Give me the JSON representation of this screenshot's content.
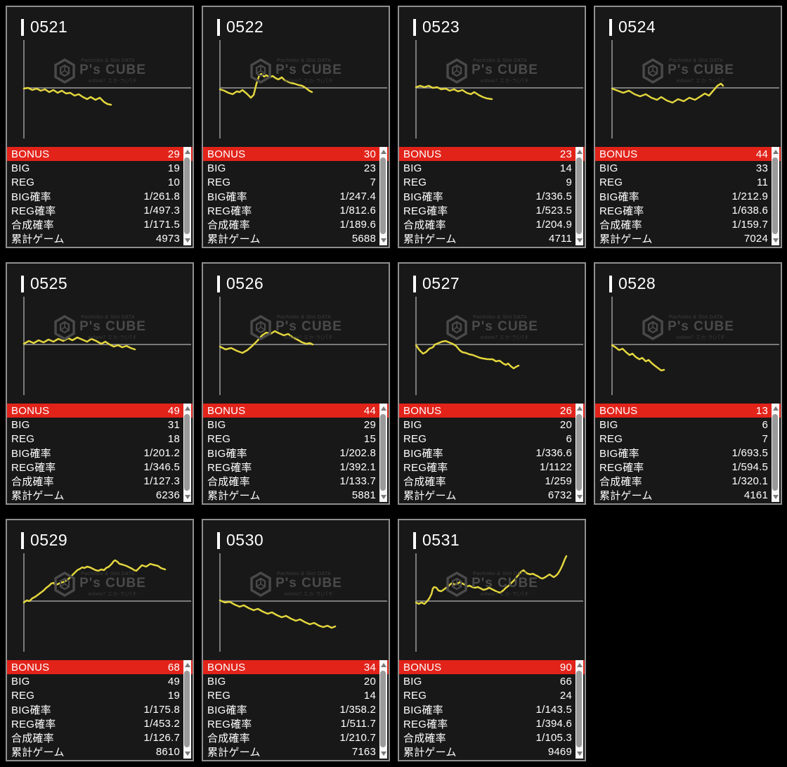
{
  "watermark": {
    "top_text": "Pachinko & Slot DATA",
    "brand": "P's CUBE",
    "sub_text": "wdww7 エカ-ラ(パチ"
  },
  "table": {
    "labels": [
      "BONUS",
      "BIG",
      "REG",
      "BIG確率",
      "REG確率",
      "合成確率",
      "累計ゲーム"
    ]
  },
  "colors": {
    "bonus_red": "#e2231a",
    "line_yellow": "#e3d63e",
    "axis_gray": "#9a9a9a",
    "panel_border": "#8f8f8f"
  },
  "chart_data": {
    "type": "line",
    "note": "differential payout graphs per machine; line arrays are panel-local x,y coords, baseline y=68"
  },
  "panels": [
    {
      "id": "0521",
      "values": [
        "29",
        "19",
        "10",
        "1/261.8",
        "1/497.3",
        "1/171.5",
        "4973"
      ],
      "line": [
        [
          24,
          69
        ],
        [
          30,
          68
        ],
        [
          36,
          71
        ],
        [
          42,
          69
        ],
        [
          48,
          72
        ],
        [
          54,
          70
        ],
        [
          60,
          74
        ],
        [
          66,
          71
        ],
        [
          72,
          75
        ],
        [
          78,
          72
        ],
        [
          84,
          76
        ],
        [
          90,
          75
        ],
        [
          96,
          79
        ],
        [
          102,
          77
        ],
        [
          108,
          81
        ],
        [
          114,
          84
        ],
        [
          119,
          81
        ],
        [
          126,
          85
        ],
        [
          132,
          82
        ],
        [
          138,
          88
        ],
        [
          143,
          91
        ],
        [
          148,
          92
        ]
      ]
    },
    {
      "id": "0522",
      "values": [
        "30",
        "23",
        "7",
        "1/247.4",
        "1/812.6",
        "1/189.6",
        "5688"
      ],
      "line": [
        [
          24,
          70
        ],
        [
          30,
          72
        ],
        [
          36,
          75
        ],
        [
          42,
          77
        ],
        [
          48,
          73
        ],
        [
          52,
          74
        ],
        [
          56,
          71
        ],
        [
          62,
          76
        ],
        [
          68,
          82
        ],
        [
          72,
          78
        ],
        [
          76,
          62
        ],
        [
          80,
          50
        ],
        [
          83,
          48
        ],
        [
          87,
          52
        ],
        [
          90,
          50
        ],
        [
          95,
          53
        ],
        [
          99,
          51
        ],
        [
          103,
          54
        ],
        [
          107,
          56
        ],
        [
          112,
          53
        ],
        [
          116,
          57
        ],
        [
          120,
          59
        ],
        [
          125,
          61
        ],
        [
          130,
          62
        ],
        [
          136,
          64
        ],
        [
          141,
          65
        ],
        [
          146,
          68
        ],
        [
          151,
          72
        ],
        [
          155,
          74
        ]
      ]
    },
    {
      "id": "0523",
      "values": [
        "23",
        "14",
        "9",
        "1/336.5",
        "1/523.5",
        "1/204.9",
        "4711"
      ],
      "line": [
        [
          24,
          67
        ],
        [
          30,
          65
        ],
        [
          36,
          67
        ],
        [
          42,
          65
        ],
        [
          48,
          68
        ],
        [
          54,
          67
        ],
        [
          60,
          70
        ],
        [
          66,
          69
        ],
        [
          72,
          72
        ],
        [
          78,
          70
        ],
        [
          84,
          73
        ],
        [
          90,
          71
        ],
        [
          96,
          75
        ],
        [
          102,
          77
        ],
        [
          107,
          74
        ],
        [
          113,
          78
        ],
        [
          119,
          81
        ],
        [
          125,
          83
        ],
        [
          132,
          84
        ]
      ]
    },
    {
      "id": "0524",
      "values": [
        "44",
        "33",
        "11",
        "1/212.9",
        "1/638.6",
        "1/159.7",
        "7024"
      ],
      "line": [
        [
          24,
          69
        ],
        [
          32,
          72
        ],
        [
          40,
          75
        ],
        [
          48,
          72
        ],
        [
          56,
          77
        ],
        [
          64,
          80
        ],
        [
          72,
          77
        ],
        [
          80,
          82
        ],
        [
          88,
          85
        ],
        [
          94,
          81
        ],
        [
          102,
          86
        ],
        [
          110,
          89
        ],
        [
          118,
          84
        ],
        [
          126,
          87
        ],
        [
          134,
          82
        ],
        [
          142,
          85
        ],
        [
          150,
          80
        ],
        [
          156,
          76
        ],
        [
          162,
          79
        ],
        [
          168,
          72
        ],
        [
          174,
          65
        ],
        [
          179,
          62
        ],
        [
          182,
          65
        ]
      ]
    },
    {
      "id": "0525",
      "values": [
        "49",
        "31",
        "18",
        "1/201.2",
        "1/346.5",
        "1/127.3",
        "6236"
      ],
      "line": [
        [
          24,
          67
        ],
        [
          31,
          63
        ],
        [
          38,
          66
        ],
        [
          45,
          62
        ],
        [
          52,
          65
        ],
        [
          59,
          61
        ],
        [
          66,
          64
        ],
        [
          73,
          60
        ],
        [
          80,
          63
        ],
        [
          87,
          59
        ],
        [
          93,
          62
        ],
        [
          100,
          58
        ],
        [
          107,
          61
        ],
        [
          114,
          64
        ],
        [
          120,
          60
        ],
        [
          127,
          63
        ],
        [
          134,
          67
        ],
        [
          140,
          64
        ],
        [
          146,
          68
        ],
        [
          152,
          71
        ],
        [
          158,
          69
        ],
        [
          164,
          72
        ],
        [
          170,
          70
        ],
        [
          176,
          73
        ],
        [
          182,
          75
        ]
      ]
    },
    {
      "id": "0526",
      "values": [
        "44",
        "29",
        "15",
        "1/202.8",
        "1/392.1",
        "1/133.7",
        "5881"
      ],
      "line": [
        [
          24,
          71
        ],
        [
          32,
          75
        ],
        [
          40,
          73
        ],
        [
          48,
          77
        ],
        [
          56,
          80
        ],
        [
          63,
          76
        ],
        [
          70,
          70
        ],
        [
          77,
          63
        ],
        [
          84,
          55
        ],
        [
          90,
          51
        ],
        [
          96,
          53
        ],
        [
          102,
          49
        ],
        [
          108,
          52
        ],
        [
          115,
          55
        ],
        [
          121,
          53
        ],
        [
          128,
          58
        ],
        [
          134,
          61
        ],
        [
          141,
          65
        ],
        [
          147,
          67
        ],
        [
          152,
          66
        ],
        [
          156,
          68
        ]
      ]
    },
    {
      "id": "0527",
      "values": [
        "26",
        "20",
        "6",
        "1/336.6",
        "1/1122",
        "1/259",
        "6732"
      ],
      "line": [
        [
          24,
          69
        ],
        [
          29,
          76
        ],
        [
          34,
          81
        ],
        [
          38,
          79
        ],
        [
          43,
          74
        ],
        [
          48,
          72
        ],
        [
          51,
          68
        ],
        [
          56,
          66
        ],
        [
          61,
          64
        ],
        [
          66,
          63
        ],
        [
          71,
          65
        ],
        [
          76,
          67
        ],
        [
          81,
          70
        ],
        [
          86,
          76
        ],
        [
          90,
          79
        ],
        [
          95,
          80
        ],
        [
          100,
          82
        ],
        [
          105,
          83
        ],
        [
          110,
          85
        ],
        [
          115,
          87
        ],
        [
          120,
          88
        ],
        [
          126,
          89
        ],
        [
          133,
          89
        ],
        [
          138,
          92
        ],
        [
          143,
          91
        ],
        [
          148,
          95
        ],
        [
          152,
          97
        ],
        [
          155,
          95
        ],
        [
          159,
          99
        ],
        [
          163,
          102
        ],
        [
          166,
          100
        ],
        [
          170,
          98
        ]
      ]
    },
    {
      "id": "0528",
      "values": [
        "13",
        "6",
        "7",
        "1/693.5",
        "1/594.5",
        "1/320.1",
        "4161"
      ],
      "line": [
        [
          24,
          69
        ],
        [
          29,
          72
        ],
        [
          34,
          76
        ],
        [
          39,
          74
        ],
        [
          44,
          79
        ],
        [
          49,
          83
        ],
        [
          53,
          81
        ],
        [
          58,
          86
        ],
        [
          63,
          89
        ],
        [
          67,
          87
        ],
        [
          72,
          92
        ],
        [
          76,
          90
        ],
        [
          81,
          95
        ],
        [
          86,
          99
        ],
        [
          90,
          102
        ],
        [
          94,
          105
        ],
        [
          98,
          104
        ]
      ]
    },
    {
      "id": "0529",
      "values": [
        "68",
        "49",
        "19",
        "1/175.8",
        "1/453.2",
        "1/126.7",
        "8610"
      ],
      "line": [
        [
          24,
          70
        ],
        [
          28,
          67
        ],
        [
          32,
          68
        ],
        [
          36,
          64
        ],
        [
          40,
          62
        ],
        [
          44,
          59
        ],
        [
          48,
          56
        ],
        [
          52,
          53
        ],
        [
          56,
          49
        ],
        [
          60,
          46
        ],
        [
          63,
          43
        ],
        [
          66,
          42
        ],
        [
          69,
          45
        ],
        [
          72,
          44
        ],
        [
          76,
          42
        ],
        [
          80,
          41
        ],
        [
          84,
          39
        ],
        [
          88,
          36
        ],
        [
          92,
          32
        ],
        [
          96,
          28
        ],
        [
          100,
          24
        ],
        [
          104,
          22
        ],
        [
          107,
          20
        ],
        [
          110,
          21
        ],
        [
          114,
          19
        ],
        [
          118,
          20
        ],
        [
          122,
          22
        ],
        [
          126,
          24
        ],
        [
          130,
          25
        ],
        [
          134,
          23
        ],
        [
          138,
          24
        ],
        [
          141,
          21
        ],
        [
          145,
          19
        ],
        [
          149,
          15
        ],
        [
          152,
          11
        ],
        [
          154,
          10
        ],
        [
          157,
          12
        ],
        [
          160,
          15
        ],
        [
          164,
          16
        ],
        [
          167,
          17
        ],
        [
          170,
          18
        ],
        [
          174,
          20
        ],
        [
          178,
          22
        ],
        [
          181,
          24
        ],
        [
          184,
          25
        ],
        [
          187,
          22
        ],
        [
          190,
          19
        ],
        [
          192,
          17
        ],
        [
          195,
          18
        ],
        [
          198,
          19
        ],
        [
          201,
          17
        ],
        [
          204,
          15
        ],
        [
          207,
          16
        ],
        [
          211,
          17
        ],
        [
          215,
          18
        ],
        [
          219,
          21
        ],
        [
          222,
          22
        ],
        [
          225,
          23
        ]
      ]
    },
    {
      "id": "0530",
      "values": [
        "34",
        "20",
        "14",
        "1/358.2",
        "1/511.7",
        "1/210.7",
        "7163"
      ],
      "line": [
        [
          24,
          67
        ],
        [
          31,
          70
        ],
        [
          38,
          69
        ],
        [
          45,
          73
        ],
        [
          52,
          76
        ],
        [
          58,
          74
        ],
        [
          65,
          78
        ],
        [
          72,
          81
        ],
        [
          78,
          79
        ],
        [
          85,
          83
        ],
        [
          92,
          86
        ],
        [
          98,
          84
        ],
        [
          105,
          88
        ],
        [
          112,
          91
        ],
        [
          118,
          89
        ],
        [
          125,
          93
        ],
        [
          132,
          96
        ],
        [
          138,
          94
        ],
        [
          145,
          98
        ],
        [
          152,
          101
        ],
        [
          158,
          99
        ],
        [
          165,
          103
        ],
        [
          171,
          105
        ],
        [
          177,
          103
        ],
        [
          183,
          106
        ],
        [
          188,
          104
        ]
      ]
    },
    {
      "id": "0531",
      "values": [
        "90",
        "66",
        "24",
        "1/143.5",
        "1/394.6",
        "1/105.3",
        "9469"
      ],
      "line": [
        [
          24,
          70
        ],
        [
          28,
          72
        ],
        [
          32,
          70
        ],
        [
          36,
          72
        ],
        [
          40,
          68
        ],
        [
          43,
          64
        ],
        [
          46,
          58
        ],
        [
          48,
          50
        ],
        [
          50,
          48
        ],
        [
          53,
          49
        ],
        [
          56,
          53
        ],
        [
          60,
          54
        ],
        [
          63,
          52
        ],
        [
          67,
          49
        ],
        [
          70,
          47
        ],
        [
          73,
          44
        ],
        [
          76,
          42
        ],
        [
          79,
          45
        ],
        [
          83,
          43
        ],
        [
          87,
          41
        ],
        [
          90,
          43
        ],
        [
          94,
          45
        ],
        [
          97,
          47
        ],
        [
          100,
          46
        ],
        [
          104,
          48
        ],
        [
          108,
          49
        ],
        [
          112,
          48
        ],
        [
          116,
          50
        ],
        [
          120,
          52
        ],
        [
          124,
          51
        ],
        [
          128,
          49
        ],
        [
          132,
          51
        ],
        [
          136,
          53
        ],
        [
          140,
          55
        ],
        [
          144,
          56
        ],
        [
          148,
          53
        ],
        [
          152,
          49
        ],
        [
          156,
          46
        ],
        [
          160,
          42
        ],
        [
          164,
          38
        ],
        [
          168,
          33
        ],
        [
          171,
          29
        ],
        [
          174,
          26
        ],
        [
          177,
          24
        ],
        [
          180,
          27
        ],
        [
          183,
          29
        ],
        [
          187,
          30
        ],
        [
          190,
          29
        ],
        [
          194,
          31
        ],
        [
          198,
          33
        ],
        [
          201,
          35
        ],
        [
          204,
          36
        ],
        [
          208,
          34
        ],
        [
          211,
          32
        ],
        [
          214,
          30
        ],
        [
          217,
          32
        ],
        [
          220,
          34
        ],
        [
          223,
          32
        ],
        [
          226,
          29
        ],
        [
          229,
          24
        ],
        [
          232,
          18
        ],
        [
          234,
          13
        ],
        [
          236,
          8
        ],
        [
          238,
          4
        ]
      ]
    }
  ]
}
